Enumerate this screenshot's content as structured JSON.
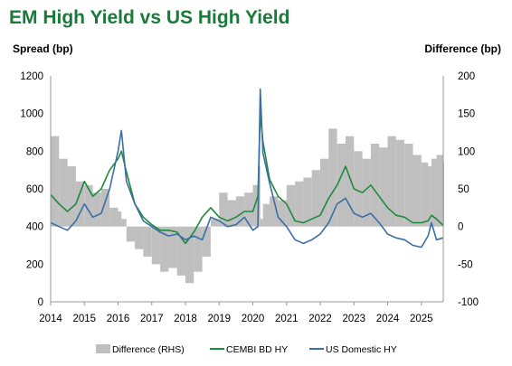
{
  "chart_data": {
    "type": "line",
    "title": "EM High Yield vs US High Yield",
    "ylabel": "Spread (bp)",
    "ylabel_right": "Difference (bp)",
    "ylim": [
      0,
      1200
    ],
    "ylim_right": [
      -100,
      200
    ],
    "yticks": [
      "0",
      "200",
      "400",
      "600",
      "800",
      "1000",
      "1200"
    ],
    "yticks_right": [
      "-100",
      "-50",
      "0",
      "50",
      "100",
      "150",
      "200"
    ],
    "x_range": [
      2014.0,
      2025.65
    ],
    "xticks": [
      "2014",
      "2015",
      "2016",
      "2017",
      "2018",
      "2019",
      "2020",
      "2021",
      "2022",
      "2023",
      "2024",
      "2025"
    ],
    "grid": false,
    "legend_position": "bottom",
    "x": [
      2014.0,
      2014.25,
      2014.5,
      2014.75,
      2015.0,
      2015.25,
      2015.5,
      2015.75,
      2016.0,
      2016.1,
      2016.25,
      2016.5,
      2016.75,
      2017.0,
      2017.25,
      2017.5,
      2017.75,
      2018.0,
      2018.25,
      2018.5,
      2018.75,
      2019.0,
      2019.25,
      2019.5,
      2019.75,
      2020.0,
      2020.15,
      2020.22,
      2020.3,
      2020.5,
      2020.75,
      2021.0,
      2021.25,
      2021.5,
      2021.75,
      2022.0,
      2022.25,
      2022.5,
      2022.75,
      2023.0,
      2023.25,
      2023.5,
      2023.75,
      2024.0,
      2024.25,
      2024.5,
      2024.75,
      2025.0,
      2025.2,
      2025.3,
      2025.45,
      2025.65
    ],
    "series": [
      {
        "name": "Difference (RHS)",
        "type": "bar",
        "color": "#bfbfbf",
        "values": [
          120,
          90,
          80,
          60,
          55,
          45,
          50,
          25,
          20,
          10,
          -20,
          -30,
          -40,
          -50,
          -60,
          -55,
          -65,
          -75,
          -60,
          -40,
          10,
          45,
          35,
          40,
          45,
          55,
          80,
          10,
          30,
          40,
          35,
          55,
          60,
          65,
          75,
          90,
          130,
          110,
          120,
          100,
          90,
          110,
          105,
          120,
          115,
          110,
          95,
          85,
          80,
          90,
          95,
          85
        ]
      },
      {
        "name": "CEMBI BD HY",
        "type": "line",
        "color": "#1e8a3e",
        "values": [
          570,
          520,
          480,
          520,
          640,
          560,
          600,
          700,
          760,
          800,
          690,
          520,
          450,
          410,
          380,
          380,
          370,
          310,
          370,
          450,
          500,
          450,
          430,
          450,
          480,
          480,
          560,
          1000,
          850,
          650,
          560,
          520,
          430,
          420,
          440,
          460,
          550,
          620,
          720,
          600,
          580,
          620,
          560,
          500,
          460,
          450,
          420,
          420,
          430,
          460,
          440,
          405
        ]
      },
      {
        "name": "US Domestic HY",
        "type": "line",
        "color": "#3a6ea5",
        "values": [
          420,
          400,
          380,
          430,
          520,
          450,
          470,
          600,
          800,
          910,
          640,
          520,
          430,
          400,
          370,
          350,
          360,
          330,
          350,
          330,
          450,
          430,
          400,
          410,
          450,
          380,
          400,
          1130,
          790,
          630,
          450,
          400,
          330,
          310,
          330,
          360,
          420,
          520,
          550,
          470,
          450,
          470,
          420,
          360,
          340,
          330,
          300,
          290,
          350,
          420,
          330,
          340
        ]
      }
    ]
  },
  "legend": [
    {
      "label": "Difference (RHS)",
      "kind": "rect",
      "color": "#bfbfbf"
    },
    {
      "label": "CEMBI BD HY",
      "kind": "line",
      "color": "#1e8a3e"
    },
    {
      "label": "US Domestic HY",
      "kind": "line",
      "color": "#3a6ea5"
    }
  ]
}
